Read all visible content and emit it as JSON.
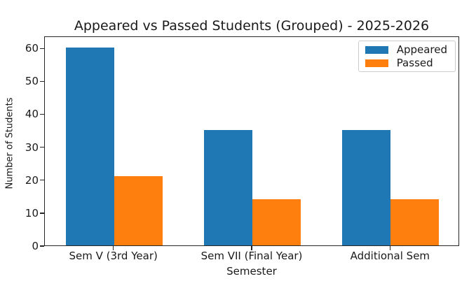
{
  "chart_data": {
    "type": "bar",
    "title": "Appeared vs Passed Students (Grouped) - 2025-2026",
    "xlabel": "Semester",
    "ylabel": "Number of Students",
    "categories": [
      "Sem V (3rd Year)",
      "Sem VII (Final Year)",
      "Additional Sem"
    ],
    "series": [
      {
        "name": "Appeared",
        "color": "#1f77b4",
        "values": [
          60,
          35,
          35
        ]
      },
      {
        "name": "Passed",
        "color": "#ff7f0e",
        "values": [
          21,
          14,
          14
        ]
      }
    ],
    "ylim": [
      0,
      63.65
    ],
    "yticks": [
      0,
      10,
      20,
      30,
      40,
      50,
      60
    ],
    "bar_width": 0.35,
    "legend_position": "upper right",
    "grid": false,
    "colors": {
      "spine": "#262626",
      "text": "#1a1a1a",
      "legend_border": "#cccccc",
      "background": "#ffffff"
    }
  }
}
